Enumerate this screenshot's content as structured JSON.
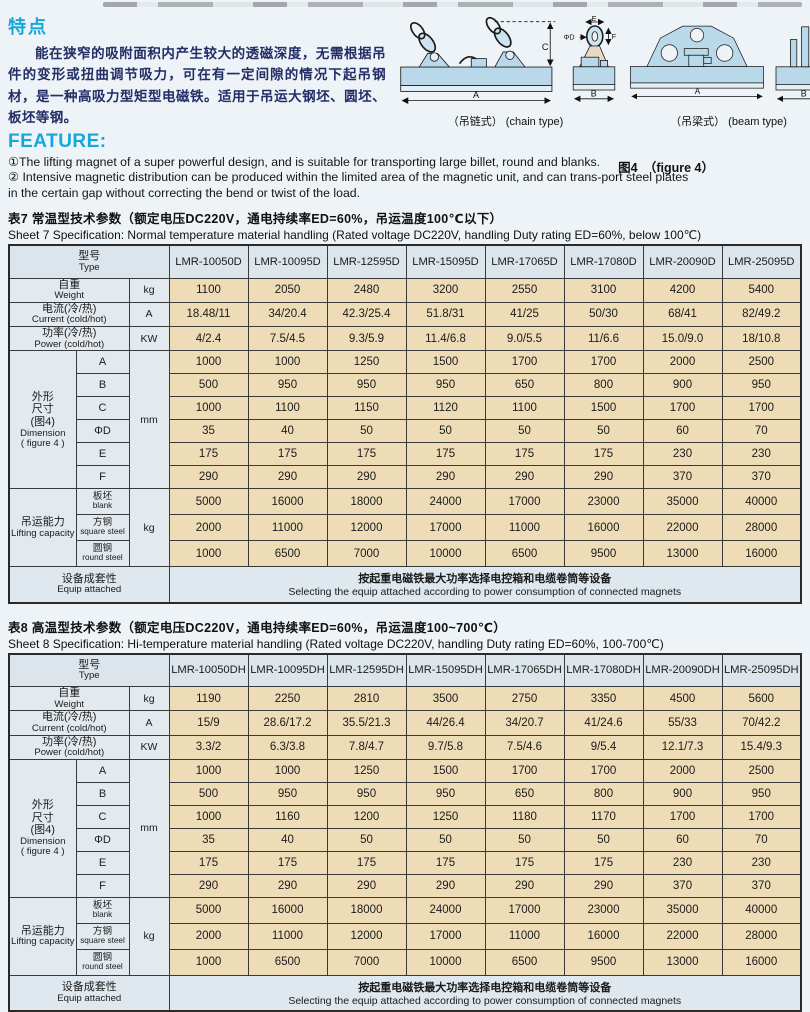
{
  "header": {
    "cn_title": "特点",
    "cn_paragraph": "能在狭窄的吸附面积内产生较大的透磁深度，无需根据吊件的变形或扭曲调节吸力，可在有一定间隙的情况下起吊钢材，是一种高吸力型矩型电磁铁。适用于吊运大钢坯、圆坯、板坯等钢。",
    "en_title": "FEATURE:",
    "items": [
      "①The lifting magnet of a super powerful design, and is suitable for transporting large billet, round and blanks.",
      "② Intensive magnetic distribution can be produced within the limited area of the magnetic unit, and can trans-port steel plates in the certain gap without correcting the bend or twist of the load."
    ],
    "figure_ref": "图4　（figure 4）"
  },
  "diagrams": {
    "chain_caption": "（吊链式） (chain type)",
    "beam_caption": "（吊梁式） (beam type)",
    "dim_labels": {
      "A": "A",
      "B": "B",
      "C": "C",
      "PhiD": "ΦD",
      "E": "E",
      "F": "F"
    }
  },
  "colors": {
    "accent": "#15a6da",
    "table_data_bg": "#eedcb7",
    "table_label_bg": "#e3eaef",
    "table_header_bg": "#dce5eb",
    "diagram_fill": "#b9d9ea"
  },
  "tables": [
    {
      "caption_cn": "表7 常温型技术参数（额定电压DC220V，通电持续率ED=60%，吊运温度100℃以下）",
      "caption_en": "Sheet 7 Specification: Normal temperature material handling  (Rated voltage DC220V, handling Duty rating ED=60%, below 100℃)",
      "type_row": {
        "label_cn": "型号",
        "label_en": "Type",
        "models": [
          "LMR-10050D",
          "LMR-10095D",
          "LMR-12595D",
          "LMR-15095D",
          "LMR-17065D",
          "LMR-17080D",
          "LMR-20090D",
          "LMR-25095D"
        ]
      },
      "simple_rows": [
        {
          "label_cn": "自重",
          "label_en": "Weight",
          "unit": "kg",
          "values": [
            "1100",
            "2050",
            "2480",
            "3200",
            "2550",
            "3100",
            "4200",
            "5400"
          ]
        },
        {
          "label_cn": "电流(冷/热)",
          "label_en": "Current (cold/hot)",
          "unit": "A",
          "values": [
            "18.48/11",
            "34/20.4",
            "42.3/25.4",
            "51.8/31",
            "41/25",
            "50/30",
            "68/41",
            "82/49.2"
          ]
        },
        {
          "label_cn": "功率(冷/热)",
          "label_en": "Power (cold/hot)",
          "unit": "KW",
          "values": [
            "4/2.4",
            "7.5/4.5",
            "9.3/5.9",
            "11.4/6.8",
            "9.0/5.5",
            "11/6.6",
            "15.0/9.0",
            "18/10.8"
          ]
        }
      ],
      "dimension_group": {
        "label_cn_lines": [
          "外形",
          "尺寸",
          "(图4)"
        ],
        "label_en_lines": [
          "Dimension",
          "( figure 4 )"
        ],
        "unit": "mm",
        "rows": [
          {
            "name": "A",
            "values": [
              "1000",
              "1000",
              "1250",
              "1500",
              "1700",
              "1700",
              "2000",
              "2500"
            ]
          },
          {
            "name": "B",
            "values": [
              "500",
              "950",
              "950",
              "950",
              "650",
              "800",
              "900",
              "950"
            ]
          },
          {
            "name": "C",
            "values": [
              "1000",
              "1100",
              "1150",
              "1120",
              "1100",
              "1500",
              "1700",
              "1700"
            ]
          },
          {
            "name": "ΦD",
            "values": [
              "35",
              "40",
              "50",
              "50",
              "50",
              "50",
              "60",
              "70"
            ]
          },
          {
            "name": "E",
            "values": [
              "175",
              "175",
              "175",
              "175",
              "175",
              "175",
              "230",
              "230"
            ]
          },
          {
            "name": "F",
            "values": [
              "290",
              "290",
              "290",
              "290",
              "290",
              "290",
              "370",
              "370"
            ]
          }
        ]
      },
      "capacity_group": {
        "label_cn": "吊运能力",
        "label_en": "Lifting capacity",
        "unit": "kg",
        "rows": [
          {
            "name_cn": "板坯",
            "name_en": "blank",
            "values": [
              "5000",
              "16000",
              "18000",
              "24000",
              "17000",
              "23000",
              "35000",
              "40000"
            ]
          },
          {
            "name_cn": "方钢",
            "name_en": "square steel",
            "values": [
              "2000",
              "11000",
              "12000",
              "17000",
              "11000",
              "16000",
              "22000",
              "28000"
            ]
          },
          {
            "name_cn": "圆钢",
            "name_en": "round steel",
            "values": [
              "1000",
              "6500",
              "7000",
              "10000",
              "6500",
              "9500",
              "13000",
              "16000"
            ]
          }
        ]
      },
      "equip_row": {
        "label_cn": "设备成套性",
        "label_en": "Equip attached",
        "text_cn": "按起重电磁铁最大功率选择电控箱和电缆卷筒等设备",
        "text_en": "Selecting the equip attached according to power consumption of connected magnets"
      }
    },
    {
      "caption_cn": "表8 高温型技术参数（额定电压DC220V，通电持续率ED=60%，吊运温度100~700℃）",
      "caption_en": "Sheet 8 Specification: Hi-temperature material handling  (Rated voltage DC220V, handling Duty rating ED=60%, 100-700℃)",
      "type_row": {
        "label_cn": "型号",
        "label_en": "Type",
        "models": [
          "LMR-10050DH",
          "LMR-10095DH",
          "LMR-12595DH",
          "LMR-15095DH",
          "LMR-17065DH",
          "LMR-17080DH",
          "LMR-20090DH",
          "LMR-25095DH"
        ]
      },
      "simple_rows": [
        {
          "label_cn": "自重",
          "label_en": "Weight",
          "unit": "kg",
          "values": [
            "1190",
            "2250",
            "2810",
            "3500",
            "2750",
            "3350",
            "4500",
            "5600"
          ]
        },
        {
          "label_cn": "电流(冷/热)",
          "label_en": "Current (cold/hot)",
          "unit": "A",
          "values": [
            "15/9",
            "28.6/17.2",
            "35.5/21.3",
            "44/26.4",
            "34/20.7",
            "41/24.6",
            "55/33",
            "70/42.2"
          ]
        },
        {
          "label_cn": "功率(冷/热)",
          "label_en": "Power (cold/hot)",
          "unit": "KW",
          "values": [
            "3.3/2",
            "6.3/3.8",
            "7.8/4.7",
            "9.7/5.8",
            "7.5/4.6",
            "9/5.4",
            "12.1/7.3",
            "15.4/9.3"
          ]
        }
      ],
      "dimension_group": {
        "label_cn_lines": [
          "外形",
          "尺寸",
          "(图4)"
        ],
        "label_en_lines": [
          "Dimension",
          "( figure 4 )"
        ],
        "unit": "mm",
        "rows": [
          {
            "name": "A",
            "values": [
              "1000",
              "1000",
              "1250",
              "1500",
              "1700",
              "1700",
              "2000",
              "2500"
            ]
          },
          {
            "name": "B",
            "values": [
              "500",
              "950",
              "950",
              "950",
              "650",
              "800",
              "900",
              "950"
            ]
          },
          {
            "name": "C",
            "values": [
              "1000",
              "1160",
              "1200",
              "1250",
              "1180",
              "1170",
              "1700",
              "1700"
            ]
          },
          {
            "name": "ΦD",
            "values": [
              "35",
              "40",
              "50",
              "50",
              "50",
              "50",
              "60",
              "70"
            ]
          },
          {
            "name": "E",
            "values": [
              "175",
              "175",
              "175",
              "175",
              "175",
              "175",
              "230",
              "230"
            ]
          },
          {
            "name": "F",
            "values": [
              "290",
              "290",
              "290",
              "290",
              "290",
              "290",
              "370",
              "370"
            ]
          }
        ]
      },
      "capacity_group": {
        "label_cn": "吊运能力",
        "label_en": "Lifting capacity",
        "unit": "kg",
        "rows": [
          {
            "name_cn": "板坯",
            "name_en": "blank",
            "values": [
              "5000",
              "16000",
              "18000",
              "24000",
              "17000",
              "23000",
              "35000",
              "40000"
            ]
          },
          {
            "name_cn": "方钢",
            "name_en": "square steel",
            "values": [
              "2000",
              "11000",
              "12000",
              "17000",
              "11000",
              "16000",
              "22000",
              "28000"
            ]
          },
          {
            "name_cn": "圆钢",
            "name_en": "round steel",
            "values": [
              "1000",
              "6500",
              "7000",
              "10000",
              "6500",
              "9500",
              "13000",
              "16000"
            ]
          }
        ]
      },
      "equip_row": {
        "label_cn": "设备成套性",
        "label_en": "Equip attached",
        "text_cn": "按起重电磁铁最大功率选择电控箱和电缆卷筒等设备",
        "text_en": "Selecting the equip attached according to power consumption of connected magnets"
      }
    }
  ]
}
